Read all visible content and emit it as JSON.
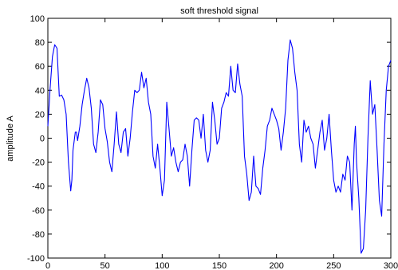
{
  "chart_data": {
    "type": "line",
    "title": "soft threshold signal",
    "xlabel": "",
    "ylabel": "amplitude A",
    "xlim": [
      0,
      300
    ],
    "ylim": [
      -100,
      100
    ],
    "xticks": [
      0,
      50,
      100,
      150,
      200,
      250,
      300
    ],
    "yticks": [
      100,
      80,
      60,
      40,
      20,
      0,
      -20,
      -40,
      -60,
      -80,
      -100
    ],
    "grid": false,
    "line_color": "#0000ff",
    "series": [
      {
        "x": [
          0,
          2,
          4,
          6,
          8,
          9,
          10,
          12,
          14,
          16,
          18,
          20,
          21,
          22,
          24,
          25,
          26,
          28,
          30,
          32,
          34,
          36,
          38,
          40,
          42,
          44,
          46,
          48,
          50,
          52,
          54,
          56,
          58,
          60,
          62,
          64,
          66,
          68,
          70,
          72,
          74,
          76,
          78,
          80,
          82,
          84,
          86,
          88,
          90,
          92,
          94,
          96,
          98,
          100,
          102,
          104,
          106,
          108,
          110,
          112,
          114,
          116,
          118,
          120,
          122,
          124,
          126,
          128,
          130,
          132,
          134,
          136,
          138,
          140,
          142,
          144,
          146,
          148,
          150,
          152,
          154,
          156,
          158,
          160,
          162,
          164,
          166,
          168,
          170,
          172,
          174,
          176,
          178,
          180,
          182,
          184,
          186,
          188,
          190,
          192,
          194,
          196,
          198,
          200,
          202,
          204,
          206,
          208,
          210,
          212,
          214,
          216,
          218,
          220,
          222,
          224,
          226,
          228,
          230,
          232,
          234,
          236,
          238,
          240,
          242,
          244,
          246,
          248,
          250,
          252,
          254,
          256,
          258,
          260,
          262,
          264,
          266,
          268,
          269,
          270,
          272,
          274,
          276,
          278,
          280,
          282,
          284,
          286,
          288,
          290,
          292,
          294,
          296,
          298,
          300
        ],
        "y": [
          10,
          42,
          68,
          78,
          75,
          55,
          35,
          36,
          32,
          20,
          -20,
          -44,
          -35,
          -10,
          5,
          5,
          -2,
          10,
          28,
          40,
          50,
          42,
          25,
          -5,
          -12,
          5,
          32,
          28,
          8,
          -3,
          -20,
          -28,
          -5,
          22,
          -5,
          -12,
          5,
          8,
          -15,
          0,
          22,
          40,
          38,
          40,
          55,
          42,
          50,
          30,
          20,
          -15,
          -25,
          -5,
          -25,
          -48,
          -35,
          30,
          8,
          -15,
          -8,
          -20,
          -28,
          -20,
          -18,
          -5,
          -15,
          -40,
          -10,
          15,
          17,
          15,
          0,
          20,
          -10,
          -20,
          -10,
          30,
          15,
          -5,
          0,
          25,
          30,
          38,
          35,
          60,
          40,
          38,
          62,
          45,
          35,
          -15,
          -30,
          -52,
          -45,
          -15,
          -40,
          -42,
          -47,
          -25,
          -10,
          10,
          15,
          25,
          20,
          15,
          8,
          -10,
          5,
          25,
          65,
          82,
          75,
          55,
          40,
          -5,
          -20,
          15,
          5,
          10,
          0,
          -5,
          -25,
          -10,
          5,
          15,
          -10,
          0,
          20,
          -10,
          -35,
          -45,
          -40,
          -45,
          -30,
          -35,
          -15,
          -20,
          -60,
          -5,
          10,
          -20,
          -50,
          -96,
          -92,
          -60,
          0,
          48,
          20,
          28,
          -10,
          -52,
          -65,
          -5,
          40,
          60,
          65
        ]
      }
    ]
  }
}
